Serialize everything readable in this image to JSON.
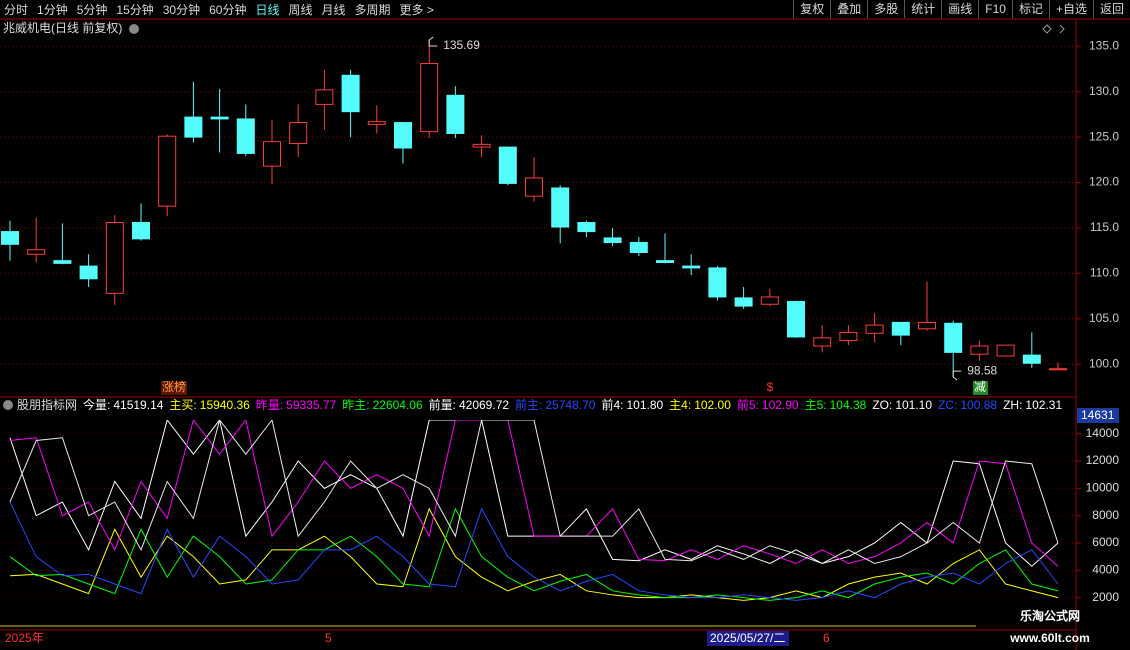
{
  "toolbar": {
    "periods": [
      "分时",
      "1分钟",
      "5分钟",
      "15分钟",
      "30分钟",
      "60分钟",
      "日线",
      "周线",
      "月线",
      "多周期",
      "更多 >"
    ],
    "selected": "日线",
    "buttons": [
      "复权",
      "叠加",
      "多股",
      "统计",
      "画线",
      "F10",
      "标记",
      "+自选",
      "返回"
    ]
  },
  "stock_title": "兆威机电(日线 前复权)",
  "chart_data": [
    {
      "type": "candlestick",
      "up_color": "#ff3c3c",
      "down_color": "#54fcfc",
      "grid": true,
      "open": [
        114.6,
        112.1,
        111.4,
        110.8,
        107.8,
        115.6,
        117.4,
        127.2,
        127.2,
        127.0,
        121.8,
        124.3,
        128.6,
        131.8,
        126.4,
        126.6,
        125.6,
        129.6,
        123.9,
        123.9,
        118.5,
        119.4,
        115.6,
        113.9,
        113.4,
        111.4,
        110.8,
        110.6,
        107.3,
        106.6,
        106.9,
        102.0,
        102.6,
        103.4,
        104.6,
        103.9,
        104.5,
        101.1,
        100.9,
        101.0,
        99.4
      ],
      "high": [
        115.8,
        116.1,
        115.5,
        112.1,
        116.4,
        117.7,
        125.3,
        131.1,
        130.3,
        128.6,
        126.9,
        128.6,
        132.4,
        132.4,
        128.5,
        126.6,
        135.69,
        130.6,
        125.2,
        123.9,
        122.8,
        119.7,
        115.8,
        115.0,
        114.0,
        114.4,
        112.1,
        110.8,
        108.5,
        108.3,
        107.0,
        104.3,
        104.3,
        105.6,
        104.6,
        109.1,
        104.8,
        102.6,
        102.1,
        103.5,
        100.2
      ],
      "low": [
        111.4,
        111.2,
        111.0,
        108.5,
        106.5,
        113.6,
        116.3,
        124.4,
        123.3,
        122.9,
        119.8,
        122.8,
        125.8,
        125.0,
        125.4,
        122.1,
        124.9,
        124.9,
        122.8,
        119.7,
        117.9,
        113.3,
        114.0,
        113.0,
        111.9,
        111.1,
        109.8,
        107.0,
        106.1,
        106.4,
        102.9,
        101.3,
        102.1,
        102.4,
        102.1,
        103.7,
        98.58,
        100.4,
        100.9,
        99.6,
        99.4
      ],
      "close": [
        113.2,
        112.6,
        111.1,
        109.4,
        115.6,
        113.8,
        125.1,
        125.0,
        127.0,
        123.2,
        124.5,
        126.6,
        130.2,
        127.8,
        126.7,
        123.8,
        133.1,
        125.4,
        124.2,
        119.9,
        120.5,
        115.1,
        114.6,
        113.4,
        112.3,
        111.2,
        110.6,
        107.4,
        106.4,
        107.4,
        103.0,
        102.9,
        103.5,
        104.3,
        103.2,
        104.6,
        101.3,
        102.0,
        102.1,
        100.1,
        99.5
      ],
      "max_label": "135.69",
      "min_label": "98.58",
      "ylim": [
        96.5,
        138
      ],
      "yticks": [
        {
          "value": 100,
          "label": "100.0"
        },
        {
          "value": 105,
          "label": "105.0"
        },
        {
          "value": 110,
          "label": "110.0"
        },
        {
          "value": 115,
          "label": "115.0"
        },
        {
          "value": 120,
          "label": "120.0"
        },
        {
          "value": 125,
          "label": "125.0"
        },
        {
          "value": 130,
          "label": "130.0"
        },
        {
          "value": 135,
          "label": "135.0"
        }
      ]
    },
    {
      "type": "line",
      "grid": true,
      "ylim": [
        0,
        15000
      ],
      "yticks": [
        2000,
        4000,
        6000,
        8000,
        10000,
        12000,
        14000
      ],
      "current_label": "14631",
      "series": [
        {
          "color": "#ffffff",
          "values": [
            13700,
            8000,
            9000,
            5500,
            10500,
            7800,
            15000,
            12500,
            15000,
            6500,
            9000,
            12000,
            10000,
            11000,
            10000,
            6500,
            15000,
            15000,
            15000,
            6500,
            6500,
            6500,
            8500,
            4800,
            4700,
            5500,
            4800,
            5800,
            5200,
            4500,
            5500,
            4500,
            5000,
            6000,
            7500,
            6000,
            12000,
            11800,
            6000,
            4300,
            6000
          ]
        },
        {
          "color": "#ffff00",
          "values": [
            3600,
            3700,
            3000,
            2300,
            7000,
            3500,
            6500,
            5000,
            3000,
            3300,
            5500,
            5500,
            6500,
            5000,
            3000,
            2800,
            8500,
            5000,
            3500,
            2500,
            3200,
            3700,
            2500,
            2200,
            2000,
            2000,
            2200,
            2000,
            1800,
            2000,
            2500,
            2000,
            3000,
            3500,
            3800,
            3000,
            4500,
            5500,
            3000,
            2500,
            2000
          ]
        },
        {
          "color": "#ff00ff",
          "values": [
            13500,
            13700,
            8000,
            9000,
            5500,
            10500,
            7800,
            15000,
            12500,
            15000,
            6500,
            9000,
            12000,
            10000,
            11000,
            10000,
            6500,
            15000,
            15000,
            15000,
            6500,
            6500,
            6500,
            8500,
            4800,
            4700,
            5500,
            4800,
            5800,
            5200,
            4500,
            5500,
            4500,
            5000,
            6000,
            7500,
            6000,
            12000,
            11800,
            6000,
            4300
          ]
        },
        {
          "color": "#00ff00",
          "values": [
            5000,
            3600,
            3700,
            3000,
            2300,
            7000,
            3500,
            6500,
            5000,
            3000,
            3300,
            5500,
            5500,
            6500,
            5000,
            3000,
            2800,
            8500,
            5000,
            3500,
            2500,
            3200,
            3700,
            2500,
            2200,
            2000,
            2000,
            2200,
            2000,
            1800,
            2000,
            2500,
            2000,
            3000,
            3500,
            3800,
            3000,
            4500,
            5500,
            3000,
            2500
          ]
        },
        {
          "color": "#e8e8e8",
          "values": [
            9000,
            13500,
            13700,
            8000,
            9000,
            5500,
            10500,
            7800,
            15000,
            12500,
            15000,
            6500,
            9000,
            12000,
            10000,
            11000,
            10000,
            6500,
            15000,
            15000,
            15000,
            6500,
            6500,
            6500,
            8500,
            4800,
            4700,
            5500,
            4800,
            5800,
            5200,
            4500,
            5500,
            4500,
            5000,
            6000,
            7500,
            6000,
            12000,
            11800,
            6000
          ]
        },
        {
          "color": "#2848ff",
          "values": [
            9000,
            5000,
            3600,
            3700,
            3000,
            2300,
            7000,
            3500,
            6500,
            5000,
            3000,
            3300,
            5500,
            5500,
            6500,
            5000,
            3000,
            2800,
            8500,
            5000,
            3500,
            2500,
            3200,
            3700,
            2500,
            2200,
            2000,
            2000,
            2200,
            2000,
            1800,
            2000,
            2500,
            2000,
            3000,
            3500,
            3800,
            3000,
            4500,
            5500,
            3000
          ]
        }
      ]
    }
  ],
  "signals": [
    "涨榜",
    "$",
    "减"
  ],
  "indicator_header": {
    "title": "股朋指标网",
    "items": [
      {
        "label": "今量:",
        "value": "41519.14",
        "color": "#ffffff"
      },
      {
        "label": "主买:",
        "value": "15940.36",
        "color": "#ffff00"
      },
      {
        "label": "昨量:",
        "value": "59335.77",
        "color": "#ff00ff"
      },
      {
        "label": "昨主:",
        "value": "22604.06",
        "color": "#00ff00"
      },
      {
        "label": "前量:",
        "value": "42069.72",
        "color": "#ffffff"
      },
      {
        "label": "前主:",
        "value": "25748.70",
        "color": "#2848ff"
      },
      {
        "label": "前4:",
        "value": "101.80",
        "color": "#ffffff"
      },
      {
        "label": "主4:",
        "value": "102.00",
        "color": "#ffff00"
      },
      {
        "label": "前5:",
        "value": "102.90",
        "color": "#ff00ff"
      },
      {
        "label": "主5:",
        "value": "104.38",
        "color": "#00ff00"
      },
      {
        "label": "ZO:",
        "value": "101.10",
        "color": "#ffffff"
      },
      {
        "label": "ZC:",
        "value": "100.88",
        "color": "#2848ff"
      },
      {
        "label": "ZH:",
        "value": "102.31",
        "color": "#ffffff"
      }
    ]
  },
  "date_axis": [
    "2025年",
    "5",
    "2025/05/27/二",
    "6"
  ],
  "watermark": [
    "乐淘公式网",
    "www.60lt.com"
  ]
}
